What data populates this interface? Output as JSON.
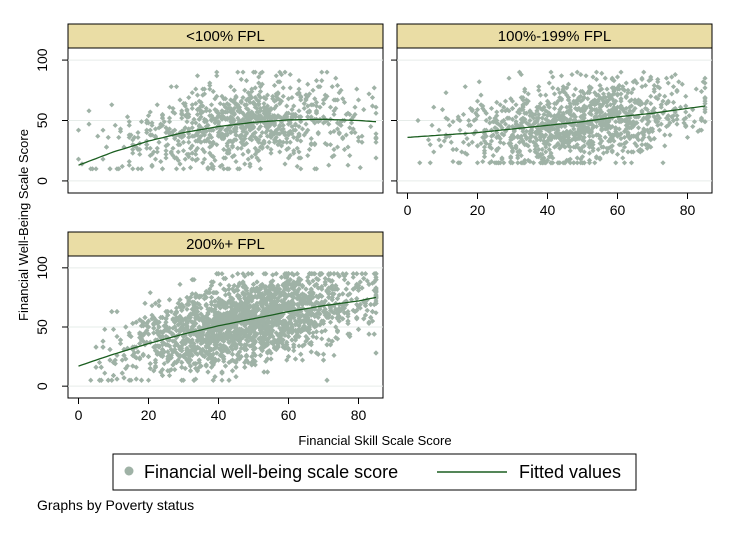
{
  "chart_data": {
    "type": "scatter",
    "by_label": "Graphs by Poverty status",
    "xlabel": "Financial Skill Scale Score",
    "ylabel": "Financial Well-Being Scale Score",
    "xlim": [
      0,
      85
    ],
    "ylim": [
      0,
      100
    ],
    "xticks": [
      0,
      20,
      40,
      60,
      80
    ],
    "yticks": [
      0,
      50,
      100
    ],
    "grid": true,
    "legend_position": "bottom",
    "colors": {
      "marker": "#9fb2a6",
      "fit": "#1b5e20",
      "strip": "#eadda5",
      "grid": "#e6ece9"
    },
    "series_names": [
      "Financial well-being scale score",
      "Fitted values"
    ],
    "panels": [
      {
        "title": "<100% FPL",
        "scatter_summary": {
          "n": 950,
          "x_range": [
            0,
            85
          ],
          "typical_y_range": [
            10,
            90
          ]
        },
        "fitted": {
          "x": [
            0,
            10,
            20,
            30,
            40,
            50,
            60,
            70,
            80,
            85
          ],
          "y": [
            13,
            24,
            33,
            40,
            45,
            48.5,
            50.5,
            51,
            50,
            49
          ]
        }
      },
      {
        "title": "100%-199% FPL",
        "scatter_summary": {
          "n": 1200,
          "x_range": [
            0,
            85
          ],
          "typical_y_range": [
            15,
            90
          ]
        },
        "fitted": {
          "x": [
            0,
            10,
            20,
            30,
            40,
            50,
            60,
            70,
            80,
            85
          ],
          "y": [
            36,
            38,
            40,
            43,
            46,
            49,
            53,
            56,
            60,
            62
          ]
        }
      },
      {
        "title": "200%+ FPL",
        "scatter_summary": {
          "n": 3500,
          "x_range": [
            0,
            85
          ],
          "typical_y_range": [
            5,
            95
          ]
        },
        "fitted": {
          "x": [
            0,
            10,
            20,
            30,
            40,
            50,
            60,
            70,
            80,
            85
          ],
          "y": [
            17,
            27,
            36,
            44,
            51,
            57,
            63,
            68,
            72,
            75
          ]
        }
      }
    ]
  }
}
